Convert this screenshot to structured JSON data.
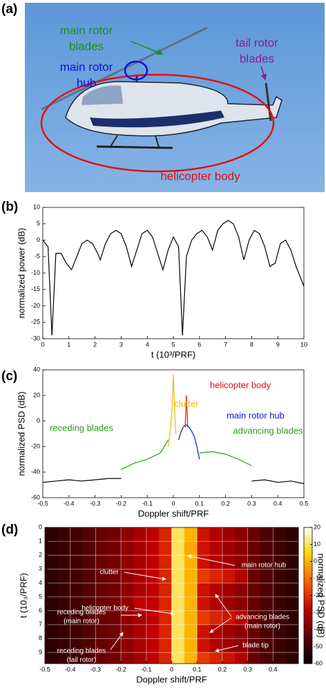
{
  "photo": {
    "panel_label": "(a)",
    "annotations": [
      {
        "lines": [
          "main rotor",
          "blades"
        ],
        "color": "#1f8f1f"
      },
      {
        "lines": [
          "main rotor",
          "hub"
        ],
        "color": "#1010e0"
      },
      {
        "lines": [
          "tail rotor",
          "blades"
        ],
        "color": "#8e1a8e"
      },
      {
        "lines": [
          "helicopter body"
        ],
        "color": "#e01010"
      }
    ]
  },
  "chart_data": [
    {
      "type": "line",
      "panel_label": "(b)",
      "xlabel": "t (10³/PRF)",
      "ylabel": "normalized power (dB)",
      "xlim": [
        0,
        10
      ],
      "xticks": [
        0,
        1,
        2,
        3,
        4,
        5,
        6,
        7,
        8,
        9,
        10
      ],
      "ylim": [
        -30,
        10
      ],
      "yticks": [
        -30,
        -25,
        -20,
        -15,
        -10,
        -5,
        0,
        5,
        10
      ],
      "series": [
        {
          "color": "#000000",
          "x": [
            0,
            0.2,
            0.35,
            0.5,
            0.7,
            0.9,
            1.1,
            1.3,
            1.5,
            1.7,
            1.9,
            2.1,
            2.2,
            2.4,
            2.6,
            2.8,
            3.0,
            3.2,
            3.4,
            3.6,
            3.8,
            4.0,
            4.2,
            4.4,
            4.6,
            4.8,
            5.0,
            5.2,
            5.35,
            5.5,
            5.7,
            5.9,
            6.1,
            6.3,
            6.5,
            6.7,
            6.9,
            7.1,
            7.3,
            7.5,
            7.7,
            7.9,
            8.1,
            8.3,
            8.5,
            8.7,
            8.9,
            9.1,
            9.3,
            9.5,
            9.7,
            10
          ],
          "values": [
            0,
            -2,
            -29,
            -4,
            -4,
            -7,
            -9,
            -5,
            -1,
            0,
            -1,
            -4,
            -6,
            -1,
            2,
            3,
            2,
            -2,
            -8,
            -3,
            2,
            3,
            1,
            -4,
            -9,
            -3,
            1,
            -2,
            -29,
            -5,
            0,
            2,
            3,
            1,
            -3,
            3,
            5,
            6,
            5,
            1,
            -6,
            0,
            3,
            2,
            -2,
            -8,
            -7,
            -1,
            0,
            -3,
            -8,
            -14
          ]
        }
      ]
    },
    {
      "type": "line",
      "panel_label": "(c)",
      "xlabel": "Doppler shift/PRF",
      "ylabel": "normalized PSD (dB)",
      "xlim": [
        -0.5,
        0.5
      ],
      "xticks": [
        -0.5,
        -0.4,
        -0.3,
        -0.2,
        -0.1,
        0,
        0.1,
        0.2,
        0.3,
        0.4,
        0.5
      ],
      "ylim": [
        -60,
        40
      ],
      "yticks": [
        -60,
        -40,
        -20,
        0,
        20,
        40
      ],
      "series": [
        {
          "color": "#000000",
          "x": [
            -0.5,
            -0.45,
            -0.4,
            -0.35,
            -0.3,
            -0.25,
            -0.2,
            0,
            0.3,
            0.35,
            0.4,
            0.45,
            0.5
          ],
          "values": [
            -48,
            -47,
            -46,
            -47,
            -46,
            -45,
            -45,
            null,
            -47,
            -46,
            -48,
            -47,
            -49
          ]
        },
        {
          "color": "#2a9a1a",
          "x": [
            -0.2,
            -0.15,
            -0.1,
            -0.05,
            -0.02,
            0.04,
            0.1,
            0.15,
            0.2,
            0.25,
            0.3
          ],
          "values": [
            -38,
            -33,
            -30,
            -25,
            -15,
            null,
            -25,
            -24,
            -26,
            -30,
            -35
          ]
        },
        {
          "color": "#f0b400",
          "x": [
            -0.02,
            -0.01,
            -0.005,
            0,
            0.005,
            0.01
          ],
          "values": [
            -20,
            -5,
            10,
            36,
            5,
            -10
          ]
        },
        {
          "color": "#1010e0",
          "x": [
            0.02,
            0.03,
            0.04,
            0.05,
            0.06,
            0.07,
            0.08,
            0.09,
            0.1
          ],
          "values": [
            -15,
            -8,
            -4,
            -3,
            -5,
            -8,
            -12,
            -20,
            -30
          ]
        },
        {
          "color": "#e01010",
          "x": [
            0.045,
            0.05,
            0.055
          ],
          "values": [
            -5,
            20,
            -5
          ]
        }
      ],
      "annotations": [
        {
          "text": "clutter",
          "color": "#f0b400"
        },
        {
          "text": "helicopter body",
          "color": "#e01010"
        },
        {
          "text": "main rotor hub",
          "color": "#1010e0"
        },
        {
          "text": "receding blades",
          "color": "#2a9a1a"
        },
        {
          "text": "advancing blades",
          "color": "#2a9a1a"
        }
      ]
    },
    {
      "type": "heatmap",
      "panel_label": "(d)",
      "xlabel": "Doppler shift/PRF",
      "ylabel": "t (10₃/PRF)",
      "clabel": "normalized PSD (dB)",
      "xlim": [
        -0.5,
        0.5
      ],
      "xticks": [
        -0.5,
        -0.4,
        -0.3,
        -0.2,
        -0.1,
        0,
        0.1,
        0.2,
        0.3,
        0.4
      ],
      "ylim": [
        0,
        9.8
      ],
      "yticks": [
        0,
        1,
        2,
        3,
        4,
        5,
        6,
        7,
        8,
        9
      ],
      "y_reversed": true,
      "grid": true,
      "clim": [
        -60,
        20
      ],
      "cticks": [
        20,
        10,
        0,
        -10,
        -20,
        -30,
        -40,
        -50,
        -60
      ],
      "colormap": [
        "#000000",
        "#5a0000",
        "#c00000",
        "#ff6000",
        "#ffd000",
        "#ffffff"
      ],
      "xbins": [
        -0.5,
        -0.45,
        -0.4,
        -0.35,
        -0.3,
        -0.25,
        -0.2,
        -0.15,
        -0.1,
        -0.05,
        0,
        0.05,
        0.1,
        0.15,
        0.2,
        0.25,
        0.3,
        0.35,
        0.4,
        0.45,
        0.5
      ],
      "ybins": [
        0,
        1,
        2,
        3,
        4,
        5,
        6,
        7,
        8,
        9,
        9.8
      ],
      "z": [
        [
          -52,
          -50,
          -48,
          -45,
          -42,
          -40,
          -35,
          -32,
          -28,
          -22,
          10,
          0,
          -25,
          -30,
          -33,
          -36,
          -42,
          -46,
          -49,
          -52
        ],
        [
          -52,
          -50,
          -48,
          -45,
          -42,
          -40,
          -35,
          -32,
          -28,
          -22,
          10,
          -2,
          -25,
          -30,
          -33,
          -36,
          -42,
          -46,
          -49,
          -52
        ],
        [
          -52,
          -50,
          -48,
          -45,
          -42,
          -40,
          -35,
          -32,
          -28,
          -22,
          10,
          0,
          -25,
          -30,
          -33,
          -36,
          -42,
          -46,
          -49,
          -52
        ],
        [
          -52,
          -50,
          -48,
          -45,
          -42,
          -40,
          -35,
          -32,
          -28,
          -22,
          10,
          0,
          -18,
          -22,
          -25,
          -30,
          -42,
          -46,
          -49,
          -52
        ],
        [
          -52,
          -50,
          -48,
          -45,
          -42,
          -40,
          -35,
          -32,
          -28,
          -22,
          10,
          0,
          -25,
          -30,
          -33,
          -36,
          -42,
          -46,
          -49,
          -52
        ],
        [
          -52,
          -50,
          -48,
          -45,
          -42,
          -40,
          -35,
          -28,
          -28,
          -22,
          10,
          0,
          -25,
          -30,
          -33,
          -36,
          -42,
          -46,
          -49,
          -52
        ],
        [
          -52,
          -50,
          -48,
          -45,
          -42,
          -40,
          -35,
          -32,
          -28,
          -22,
          10,
          0,
          -18,
          -22,
          -25,
          -30,
          -42,
          -46,
          -49,
          -52
        ],
        [
          -52,
          -50,
          -48,
          -45,
          -42,
          -40,
          -35,
          -32,
          -28,
          -22,
          10,
          0,
          -25,
          -30,
          -33,
          -36,
          -42,
          -46,
          -49,
          -52
        ],
        [
          -52,
          -50,
          -48,
          -45,
          -42,
          -40,
          -35,
          -32,
          -28,
          -22,
          10,
          0,
          -25,
          -30,
          -33,
          -36,
          -42,
          -46,
          -49,
          -52
        ],
        [
          -52,
          -50,
          -48,
          -45,
          -42,
          -40,
          -35,
          -32,
          -28,
          -22,
          10,
          0,
          -18,
          -22,
          -25,
          -30,
          -42,
          -46,
          -49,
          -52
        ]
      ],
      "annotations": [
        {
          "lines": [
            "clutter"
          ]
        },
        {
          "lines": [
            "main rotor hub"
          ]
        },
        {
          "lines": [
            "helicopter body"
          ]
        },
        {
          "lines": [
            "advancing blades",
            "(main rotor)"
          ]
        },
        {
          "lines": [
            "receding blades",
            "(main rotor)"
          ]
        },
        {
          "lines": [
            "blade tip"
          ]
        },
        {
          "lines": [
            "receding blades",
            "(tail rotor)"
          ]
        }
      ]
    }
  ]
}
